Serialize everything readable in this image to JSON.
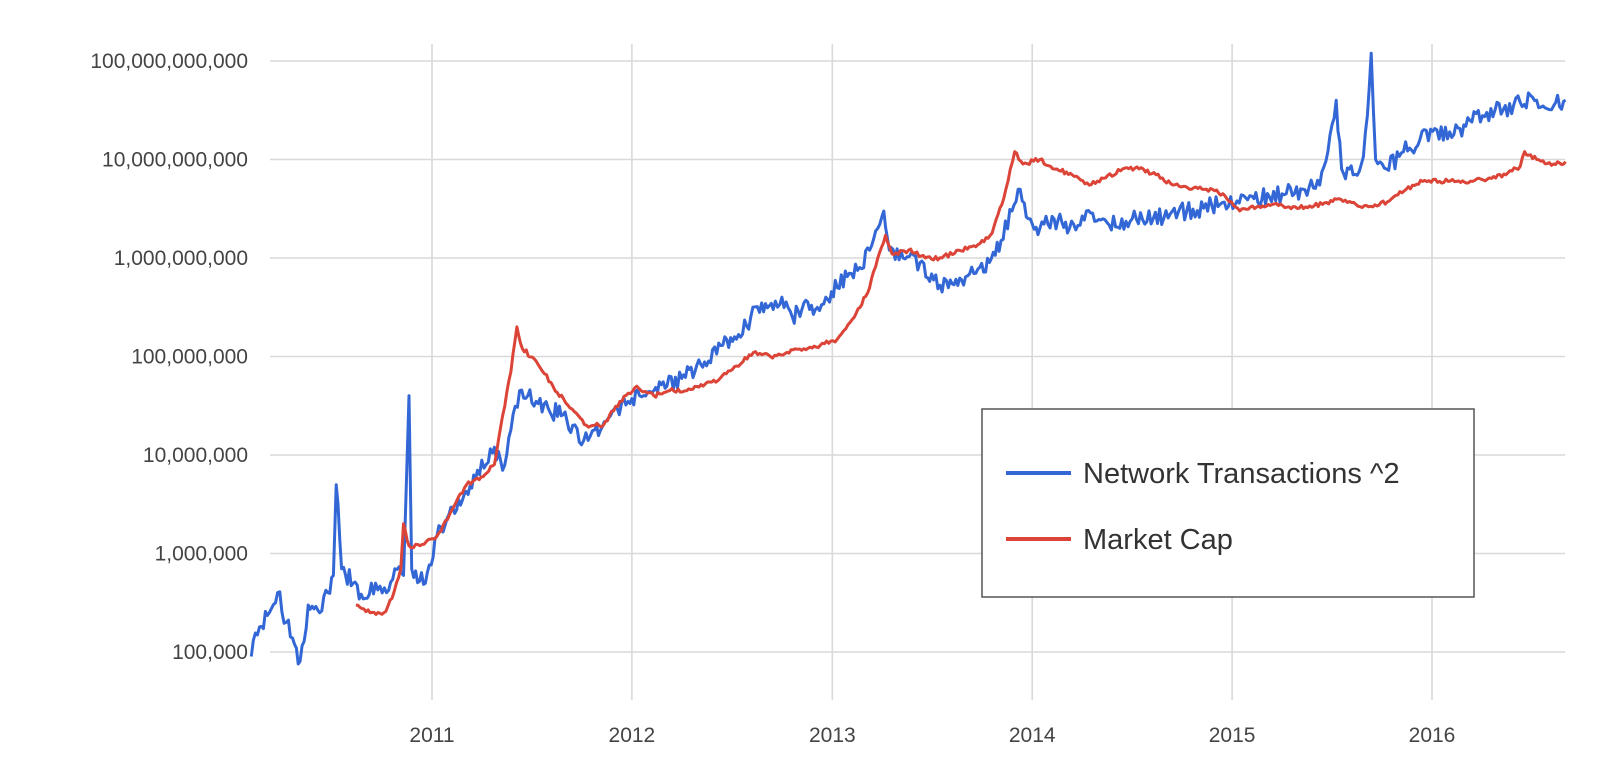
{
  "chart_data": {
    "type": "line",
    "y_scale": "log",
    "ylim": [
      70000,
      130000000000
    ],
    "xlim": [
      "2010-02-01",
      "2016-09-01"
    ],
    "grid": true,
    "legend_position": "center-right",
    "y_ticks": [
      {
        "value": 100000,
        "label": "100,000"
      },
      {
        "value": 1000000,
        "label": "1,000,000"
      },
      {
        "value": 10000000,
        "label": "10,000,000"
      },
      {
        "value": 100000000,
        "label": "100,000,000"
      },
      {
        "value": 1000000000,
        "label": "1,000,000,000"
      },
      {
        "value": 10000000000,
        "label": "10,000,000,000"
      },
      {
        "value": 100000000000,
        "label": "100,000,000,000"
      }
    ],
    "x_ticks": [
      {
        "value": "2011-01-01",
        "label": "2011"
      },
      {
        "value": "2012-01-01",
        "label": "2012"
      },
      {
        "value": "2013-01-01",
        "label": "2013"
      },
      {
        "value": "2014-01-01",
        "label": "2014"
      },
      {
        "value": "2015-01-01",
        "label": "2015"
      },
      {
        "value": "2016-01-01",
        "label": "2016"
      }
    ],
    "series": [
      {
        "name": "Network Transactions ^2",
        "color": "#3367d6",
        "points": [
          [
            "2010-02-05",
            90000
          ],
          [
            "2010-02-20",
            180000
          ],
          [
            "2010-03-10",
            250000
          ],
          [
            "2010-03-25",
            400000
          ],
          [
            "2010-04-10",
            200000
          ],
          [
            "2010-04-25",
            120000
          ],
          [
            "2010-05-05",
            80000
          ],
          [
            "2010-05-20",
            300000
          ],
          [
            "2010-06-10",
            250000
          ],
          [
            "2010-06-25",
            400000
          ],
          [
            "2010-07-05",
            600000
          ],
          [
            "2010-07-10",
            5000000
          ],
          [
            "2010-07-20",
            700000
          ],
          [
            "2010-08-10",
            500000
          ],
          [
            "2010-09-01",
            350000
          ],
          [
            "2010-09-20",
            500000
          ],
          [
            "2010-10-10",
            400000
          ],
          [
            "2010-10-25",
            700000
          ],
          [
            "2010-11-10",
            600000
          ],
          [
            "2010-11-20",
            40000000
          ],
          [
            "2010-11-25",
            700000
          ],
          [
            "2010-12-20",
            500000
          ],
          [
            "2011-01-10",
            1500000
          ],
          [
            "2011-02-01",
            2500000
          ],
          [
            "2011-03-01",
            4000000
          ],
          [
            "2011-03-25",
            7000000
          ],
          [
            "2011-04-10",
            8000000
          ],
          [
            "2011-04-25",
            12000000
          ],
          [
            "2011-05-10",
            7000000
          ],
          [
            "2011-05-25",
            18000000
          ],
          [
            "2011-06-10",
            45000000
          ],
          [
            "2011-06-25",
            40000000
          ],
          [
            "2011-07-10",
            35000000
          ],
          [
            "2011-08-01",
            30000000
          ],
          [
            "2011-08-25",
            25000000
          ],
          [
            "2011-09-15",
            20000000
          ],
          [
            "2011-10-05",
            14000000
          ],
          [
            "2011-10-25",
            18000000
          ],
          [
            "2011-11-15",
            22000000
          ],
          [
            "2011-12-05",
            30000000
          ],
          [
            "2011-12-25",
            35000000
          ],
          [
            "2012-01-15",
            40000000
          ],
          [
            "2012-02-10",
            45000000
          ],
          [
            "2012-03-05",
            50000000
          ],
          [
            "2012-04-01",
            60000000
          ],
          [
            "2012-04-25",
            70000000
          ],
          [
            "2012-05-20",
            90000000
          ],
          [
            "2012-06-15",
            130000000
          ],
          [
            "2012-07-10",
            150000000
          ],
          [
            "2012-08-05",
            250000000
          ],
          [
            "2012-08-25",
            350000000
          ],
          [
            "2012-09-15",
            300000000
          ],
          [
            "2012-10-01",
            400000000
          ],
          [
            "2012-10-20",
            250000000
          ],
          [
            "2012-11-10",
            350000000
          ],
          [
            "2012-12-01",
            300000000
          ],
          [
            "2012-12-20",
            400000000
          ],
          [
            "2013-01-10",
            500000000
          ],
          [
            "2013-02-01",
            700000000
          ],
          [
            "2013-02-20",
            800000000
          ],
          [
            "2013-03-10",
            1200000000
          ],
          [
            "2013-03-25",
            2000000000
          ],
          [
            "2013-04-05",
            3000000000
          ],
          [
            "2013-04-15",
            1200000000
          ],
          [
            "2013-05-10",
            1000000000
          ],
          [
            "2013-06-10",
            900000000
          ],
          [
            "2013-07-05",
            600000000
          ],
          [
            "2013-08-01",
            500000000
          ],
          [
            "2013-08-25",
            600000000
          ],
          [
            "2013-09-20",
            700000000
          ],
          [
            "2013-10-15",
            900000000
          ],
          [
            "2013-11-05",
            1500000000
          ],
          [
            "2013-11-25",
            3000000000
          ],
          [
            "2013-12-10",
            5000000000
          ],
          [
            "2013-12-25",
            2500000000
          ],
          [
            "2014-01-15",
            2000000000
          ],
          [
            "2014-02-10",
            2500000000
          ],
          [
            "2014-03-10",
            2000000000
          ],
          [
            "2014-04-10",
            3000000000
          ],
          [
            "2014-05-10",
            2500000000
          ],
          [
            "2014-06-10",
            2000000000
          ],
          [
            "2014-07-10",
            2500000000
          ],
          [
            "2014-08-10",
            2500000000
          ],
          [
            "2014-09-10",
            2800000000
          ],
          [
            "2014-10-10",
            3000000000
          ],
          [
            "2014-11-10",
            3200000000
          ],
          [
            "2014-12-10",
            3500000000
          ],
          [
            "2015-01-10",
            3800000000
          ],
          [
            "2015-02-10",
            4000000000
          ],
          [
            "2015-03-10",
            4200000000
          ],
          [
            "2015-04-10",
            4500000000
          ],
          [
            "2015-05-10",
            5000000000
          ],
          [
            "2015-06-10",
            5500000000
          ],
          [
            "2015-06-25",
            12000000000
          ],
          [
            "2015-07-10",
            40000000000
          ],
          [
            "2015-07-20",
            8000000000
          ],
          [
            "2015-08-10",
            7000000000
          ],
          [
            "2015-08-25",
            9000000000
          ],
          [
            "2015-09-05",
            28000000000
          ],
          [
            "2015-09-12",
            120000000000
          ],
          [
            "2015-09-20",
            10000000000
          ],
          [
            "2015-10-10",
            8000000000
          ],
          [
            "2015-11-10",
            12000000000
          ],
          [
            "2015-12-10",
            16000000000
          ],
          [
            "2016-01-10",
            20000000000
          ],
          [
            "2016-02-10",
            18000000000
          ],
          [
            "2016-03-10",
            25000000000
          ],
          [
            "2016-04-10",
            30000000000
          ],
          [
            "2016-05-10",
            32000000000
          ],
          [
            "2016-06-10",
            38000000000
          ],
          [
            "2016-07-10",
            40000000000
          ],
          [
            "2016-08-10",
            35000000000
          ],
          [
            "2016-09-01",
            40000000000
          ]
        ]
      },
      {
        "name": "Market Cap",
        "color": "#db4437",
        "points": [
          [
            "2010-08-15",
            300000
          ],
          [
            "2010-09-10",
            250000
          ],
          [
            "2010-10-05",
            250000
          ],
          [
            "2010-10-20",
            350000
          ],
          [
            "2010-11-05",
            700000
          ],
          [
            "2010-11-10",
            2000000
          ],
          [
            "2010-11-20",
            1200000
          ],
          [
            "2010-12-10",
            1200000
          ],
          [
            "2011-01-10",
            1500000
          ],
          [
            "2011-02-10",
            3000000
          ],
          [
            "2011-03-05",
            5000000
          ],
          [
            "2011-04-01",
            6000000
          ],
          [
            "2011-04-25",
            8000000
          ],
          [
            "2011-05-10",
            25000000
          ],
          [
            "2011-05-25",
            70000000
          ],
          [
            "2011-06-05",
            200000000
          ],
          [
            "2011-06-15",
            120000000
          ],
          [
            "2011-07-10",
            90000000
          ],
          [
            "2011-08-10",
            50000000
          ],
          [
            "2011-09-10",
            30000000
          ],
          [
            "2011-10-10",
            20000000
          ],
          [
            "2011-11-10",
            20000000
          ],
          [
            "2011-12-10",
            35000000
          ],
          [
            "2012-01-10",
            50000000
          ],
          [
            "2012-02-10",
            40000000
          ],
          [
            "2012-03-10",
            45000000
          ],
          [
            "2012-04-10",
            45000000
          ],
          [
            "2012-05-10",
            50000000
          ],
          [
            "2012-06-10",
            60000000
          ],
          [
            "2012-07-10",
            80000000
          ],
          [
            "2012-08-10",
            110000000
          ],
          [
            "2012-09-10",
            100000000
          ],
          [
            "2012-10-10",
            110000000
          ],
          [
            "2012-11-10",
            120000000
          ],
          [
            "2012-12-10",
            130000000
          ],
          [
            "2013-01-10",
            150000000
          ],
          [
            "2013-02-10",
            250000000
          ],
          [
            "2013-03-10",
            500000000
          ],
          [
            "2013-03-25",
            1000000000
          ],
          [
            "2013-04-08",
            1700000000
          ],
          [
            "2013-04-20",
            1100000000
          ],
          [
            "2013-05-20",
            1200000000
          ],
          [
            "2013-06-20",
            1000000000
          ],
          [
            "2013-07-20",
            1000000000
          ],
          [
            "2013-08-20",
            1200000000
          ],
          [
            "2013-09-20",
            1300000000
          ],
          [
            "2013-10-20",
            1800000000
          ],
          [
            "2013-11-10",
            4000000000
          ],
          [
            "2013-11-30",
            12000000000
          ],
          [
            "2013-12-15",
            9000000000
          ],
          [
            "2014-01-15",
            10000000000
          ],
          [
            "2014-02-15",
            8000000000
          ],
          [
            "2014-03-15",
            7000000000
          ],
          [
            "2014-04-15",
            5500000000
          ],
          [
            "2014-05-15",
            6500000000
          ],
          [
            "2014-06-15",
            8000000000
          ],
          [
            "2014-07-15",
            8000000000
          ],
          [
            "2014-08-15",
            7000000000
          ],
          [
            "2014-09-15",
            5500000000
          ],
          [
            "2014-10-15",
            5000000000
          ],
          [
            "2014-11-15",
            5000000000
          ],
          [
            "2014-12-15",
            4500000000
          ],
          [
            "2015-01-15",
            3000000000
          ],
          [
            "2015-02-15",
            3300000000
          ],
          [
            "2015-03-15",
            3500000000
          ],
          [
            "2015-04-15",
            3300000000
          ],
          [
            "2015-05-15",
            3300000000
          ],
          [
            "2015-06-15",
            3500000000
          ],
          [
            "2015-07-15",
            4000000000
          ],
          [
            "2015-08-15",
            3500000000
          ],
          [
            "2015-09-15",
            3300000000
          ],
          [
            "2015-10-15",
            3800000000
          ],
          [
            "2015-11-15",
            5000000000
          ],
          [
            "2015-12-15",
            6000000000
          ],
          [
            "2016-01-15",
            6000000000
          ],
          [
            "2016-02-15",
            6000000000
          ],
          [
            "2016-03-15",
            6000000000
          ],
          [
            "2016-04-15",
            6500000000
          ],
          [
            "2016-05-15",
            7000000000
          ],
          [
            "2016-06-10",
            8500000000
          ],
          [
            "2016-06-18",
            12000000000
          ],
          [
            "2016-07-10",
            10000000000
          ],
          [
            "2016-08-10",
            9000000000
          ],
          [
            "2016-09-01",
            9500000000
          ]
        ]
      }
    ]
  }
}
